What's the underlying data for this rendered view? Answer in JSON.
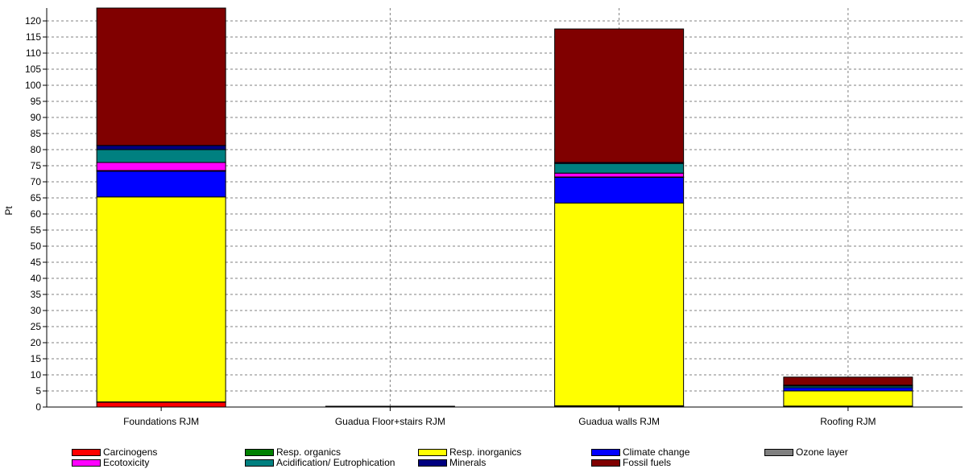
{
  "chart_data": {
    "type": "bar",
    "stacked": true,
    "ylabel": "Pt",
    "xlabel": "",
    "ylim": [
      0,
      124
    ],
    "ytick_step": 5,
    "grid": true,
    "legend_position": "bottom",
    "categories": [
      "Foundations RJM",
      "Guadua Floor+stairs RJM",
      "Guadua walls RJM",
      "Roofing RJM"
    ],
    "series": [
      {
        "name": "Carcinogens",
        "color": "#ff0000",
        "values": [
          1.5,
          0.25,
          0.3,
          0.2
        ]
      },
      {
        "name": "Resp. organics",
        "color": "#008000",
        "values": [
          0.1,
          0.0,
          0.1,
          0.1
        ]
      },
      {
        "name": "Resp. inorganics",
        "color": "#ffff00",
        "values": [
          63.7,
          0.0,
          63.0,
          4.7
        ]
      },
      {
        "name": "Climate change",
        "color": "#0000ff",
        "values": [
          8.0,
          0.0,
          8.0,
          1.0
        ]
      },
      {
        "name": "Ozone layer",
        "color": "#808080",
        "values": [
          0.2,
          0.0,
          0.1,
          0.0
        ]
      },
      {
        "name": "Ecotoxicity",
        "color": "#ff00ff",
        "values": [
          2.5,
          0.0,
          1.2,
          0.0
        ]
      },
      {
        "name": "Acidification/ Eutrophication",
        "color": "#008080",
        "values": [
          4.0,
          0.0,
          3.0,
          0.5
        ]
      },
      {
        "name": "Minerals",
        "color": "#000080",
        "values": [
          1.3,
          0.0,
          0.3,
          0.3
        ]
      },
      {
        "name": "Fossil fuels",
        "color": "#800000",
        "values": [
          42.7,
          0.0,
          41.5,
          2.5
        ]
      }
    ]
  },
  "legend": {
    "items": [
      {
        "label": "Carcinogens",
        "color": "#ff0000"
      },
      {
        "label": "Resp. organics",
        "color": "#008000"
      },
      {
        "label": "Resp. inorganics",
        "color": "#ffff00"
      },
      {
        "label": "Climate change",
        "color": "#0000ff"
      },
      {
        "label": "Ozone layer",
        "color": "#808080"
      },
      {
        "label": "Ecotoxicity",
        "color": "#ff00ff"
      },
      {
        "label": "Acidification/ Eutrophication",
        "color": "#008080"
      },
      {
        "label": "Minerals",
        "color": "#000080"
      },
      {
        "label": "Fossil fuels",
        "color": "#800000"
      }
    ]
  }
}
